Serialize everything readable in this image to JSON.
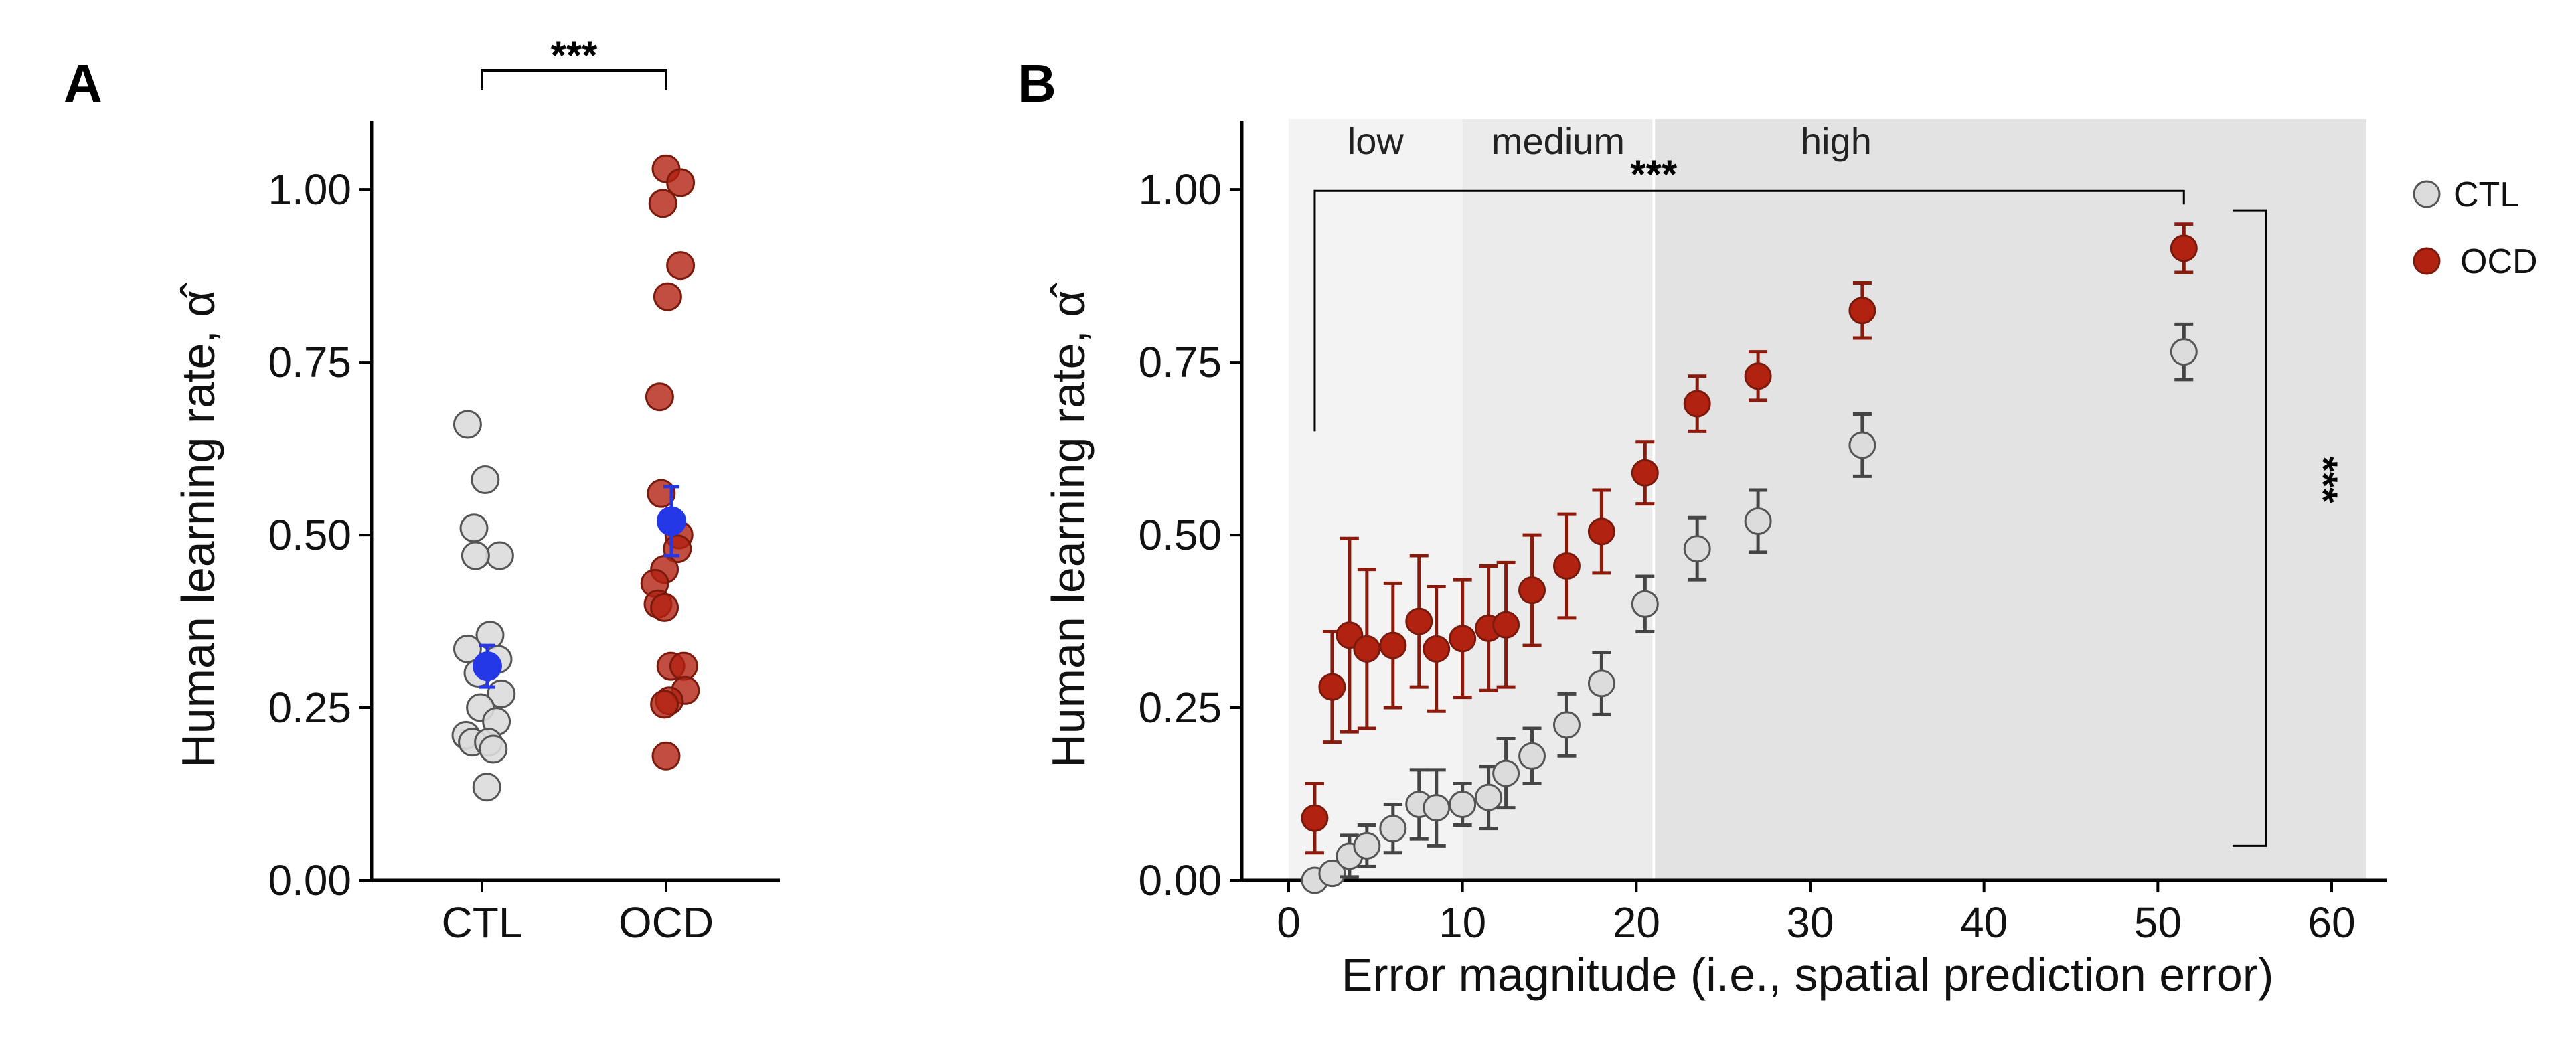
{
  "figure": {
    "panel_a_label": "A",
    "panel_b_label": "B"
  },
  "colors": {
    "ctl": "#dcdcdc",
    "ctl_edge": "#555555",
    "ocd": "#b22210",
    "ocd_edge": "#7a1a0c",
    "mean": "#2438e8",
    "band_low": "#f3f3f3",
    "band_medium": "#ebebeb",
    "band_high": "#e3e3e3"
  },
  "chart_data": [
    {
      "type": "scatter",
      "panel": "A",
      "ylabel": "Human learning rate, α̂",
      "ylim": [
        0,
        1.1
      ],
      "yticks": [
        "0.00",
        "0.25",
        "0.50",
        "0.75",
        "1.00"
      ],
      "categories": [
        "CTL",
        "OCD"
      ],
      "significance": "***",
      "series": [
        {
          "group": "CTL",
          "values": [
            0.66,
            0.58,
            0.51,
            0.47,
            0.47,
            0.355,
            0.335,
            0.32,
            0.3,
            0.27,
            0.25,
            0.23,
            0.21,
            0.2,
            0.2,
            0.19,
            0.135
          ],
          "mean": 0.31,
          "error": 0.03
        },
        {
          "group": "OCD",
          "values": [
            1.03,
            1.01,
            0.98,
            0.89,
            0.845,
            0.7,
            0.56,
            0.5,
            0.48,
            0.45,
            0.43,
            0.4,
            0.395,
            0.31,
            0.31,
            0.275,
            0.26,
            0.255,
            0.18
          ],
          "mean": 0.52,
          "error": 0.05
        }
      ]
    },
    {
      "type": "scatter",
      "panel": "B",
      "xlabel": "Error magnitude (i.e., spatial prediction error)",
      "ylabel": "Human learning rate, α̂",
      "xlim": [
        0,
        62
      ],
      "ylim": [
        0,
        1.1
      ],
      "xticks": [
        "0",
        "10",
        "20",
        "30",
        "40",
        "50",
        "60"
      ],
      "yticks": [
        "0.00",
        "0.25",
        "0.50",
        "0.75",
        "1.00"
      ],
      "bands": [
        {
          "label": "low",
          "x_start": 0,
          "x_end": 10
        },
        {
          "label": "medium",
          "x_start": 10,
          "x_end": 21
        },
        {
          "label": "high",
          "x_start": 21,
          "x_end": 62
        }
      ],
      "significance_horizontal": "***",
      "significance_vertical": "***",
      "legend": [
        "CTL",
        "OCD"
      ],
      "legend_position": "right",
      "series": [
        {
          "name": "CTL",
          "x": [
            1.5,
            2.5,
            3.5,
            4.5,
            6,
            7.5,
            8.5,
            10,
            11.5,
            12.5,
            14,
            16,
            18,
            20.5,
            23.5,
            27,
            33,
            51.5
          ],
          "y": [
            0.0,
            0.01,
            0.035,
            0.05,
            0.075,
            0.11,
            0.105,
            0.11,
            0.12,
            0.155,
            0.18,
            0.225,
            0.285,
            0.4,
            0.48,
            0.52,
            0.63,
            0.765
          ],
          "err": [
            0.0,
            0.005,
            0.03,
            0.03,
            0.035,
            0.05,
            0.055,
            0.03,
            0.045,
            0.05,
            0.04,
            0.045,
            0.045,
            0.04,
            0.045,
            0.045,
            0.045,
            0.04
          ]
        },
        {
          "name": "OCD",
          "x": [
            1.5,
            2.5,
            3.5,
            4.5,
            6,
            7.5,
            8.5,
            10,
            11.5,
            12.5,
            14,
            16,
            18,
            20.5,
            23.5,
            27,
            33,
            51.5
          ],
          "y": [
            0.09,
            0.28,
            0.355,
            0.335,
            0.34,
            0.375,
            0.335,
            0.35,
            0.365,
            0.37,
            0.42,
            0.455,
            0.505,
            0.59,
            0.69,
            0.73,
            0.825,
            0.915
          ],
          "err": [
            0.05,
            0.08,
            0.14,
            0.115,
            0.09,
            0.095,
            0.09,
            0.085,
            0.09,
            0.09,
            0.08,
            0.075,
            0.06,
            0.045,
            0.04,
            0.035,
            0.04,
            0.035
          ]
        }
      ]
    }
  ]
}
